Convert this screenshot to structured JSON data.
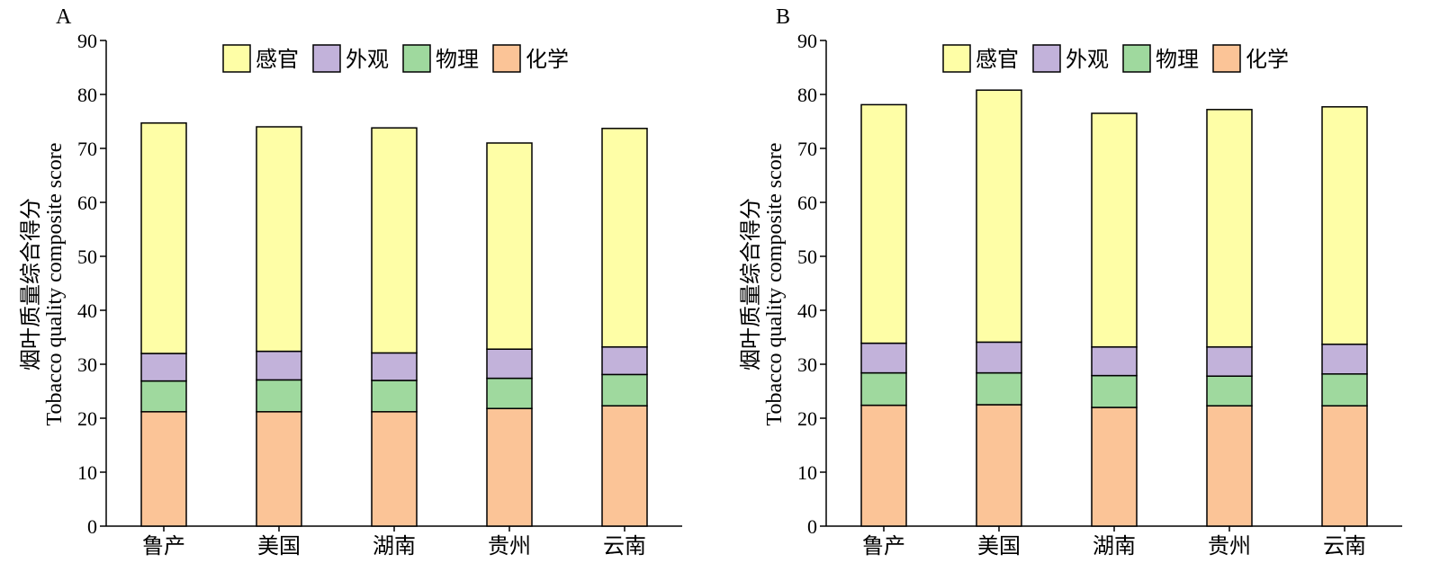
{
  "chart_data": [
    {
      "type": "bar",
      "stacked": true,
      "panel_label": "A",
      "categories": [
        "鲁产",
        "美国",
        "湖南",
        "贵州",
        "云南"
      ],
      "ylabel_cn": "烟叶质量综合得分",
      "ylabel_en": "Tobacco quality composite score",
      "ylim": [
        0,
        90
      ],
      "yticks": [
        0,
        10,
        20,
        30,
        40,
        50,
        60,
        70,
        80,
        90
      ],
      "legend_position": "top-center",
      "series": [
        {
          "name": "化学",
          "color": "#FBC497",
          "values": [
            21.2,
            21.2,
            21.2,
            21.8,
            22.3
          ]
        },
        {
          "name": "物理",
          "color": "#9FD99E",
          "values": [
            5.7,
            5.9,
            5.8,
            5.6,
            5.8
          ]
        },
        {
          "name": "外观",
          "color": "#C2B2DA",
          "values": [
            5.1,
            5.3,
            5.1,
            5.4,
            5.1
          ]
        },
        {
          "name": "感官",
          "color": "#FEFEA6",
          "values": [
            42.7,
            41.6,
            41.7,
            38.2,
            40.5
          ]
        }
      ]
    },
    {
      "type": "bar",
      "stacked": true,
      "panel_label": "B",
      "categories": [
        "鲁产",
        "美国",
        "湖南",
        "贵州",
        "云南"
      ],
      "ylabel_cn": "烟叶质量综合得分",
      "ylabel_en": "Tobacco quality composite score",
      "ylim": [
        0,
        90
      ],
      "yticks": [
        0,
        10,
        20,
        30,
        40,
        50,
        60,
        70,
        80,
        90
      ],
      "legend_position": "top-center",
      "series": [
        {
          "name": "化学",
          "color": "#FBC497",
          "values": [
            22.4,
            22.5,
            22.0,
            22.3,
            22.3
          ]
        },
        {
          "name": "物理",
          "color": "#9FD99E",
          "values": [
            6.0,
            5.9,
            5.9,
            5.5,
            5.9
          ]
        },
        {
          "name": "外观",
          "color": "#C2B2DA",
          "values": [
            5.5,
            5.7,
            5.3,
            5.4,
            5.5
          ]
        },
        {
          "name": "感官",
          "color": "#FEFEA6",
          "values": [
            44.2,
            46.7,
            43.3,
            44.0,
            44.0
          ]
        }
      ]
    }
  ],
  "legend_order": [
    "感官",
    "外观",
    "物理",
    "化学"
  ]
}
